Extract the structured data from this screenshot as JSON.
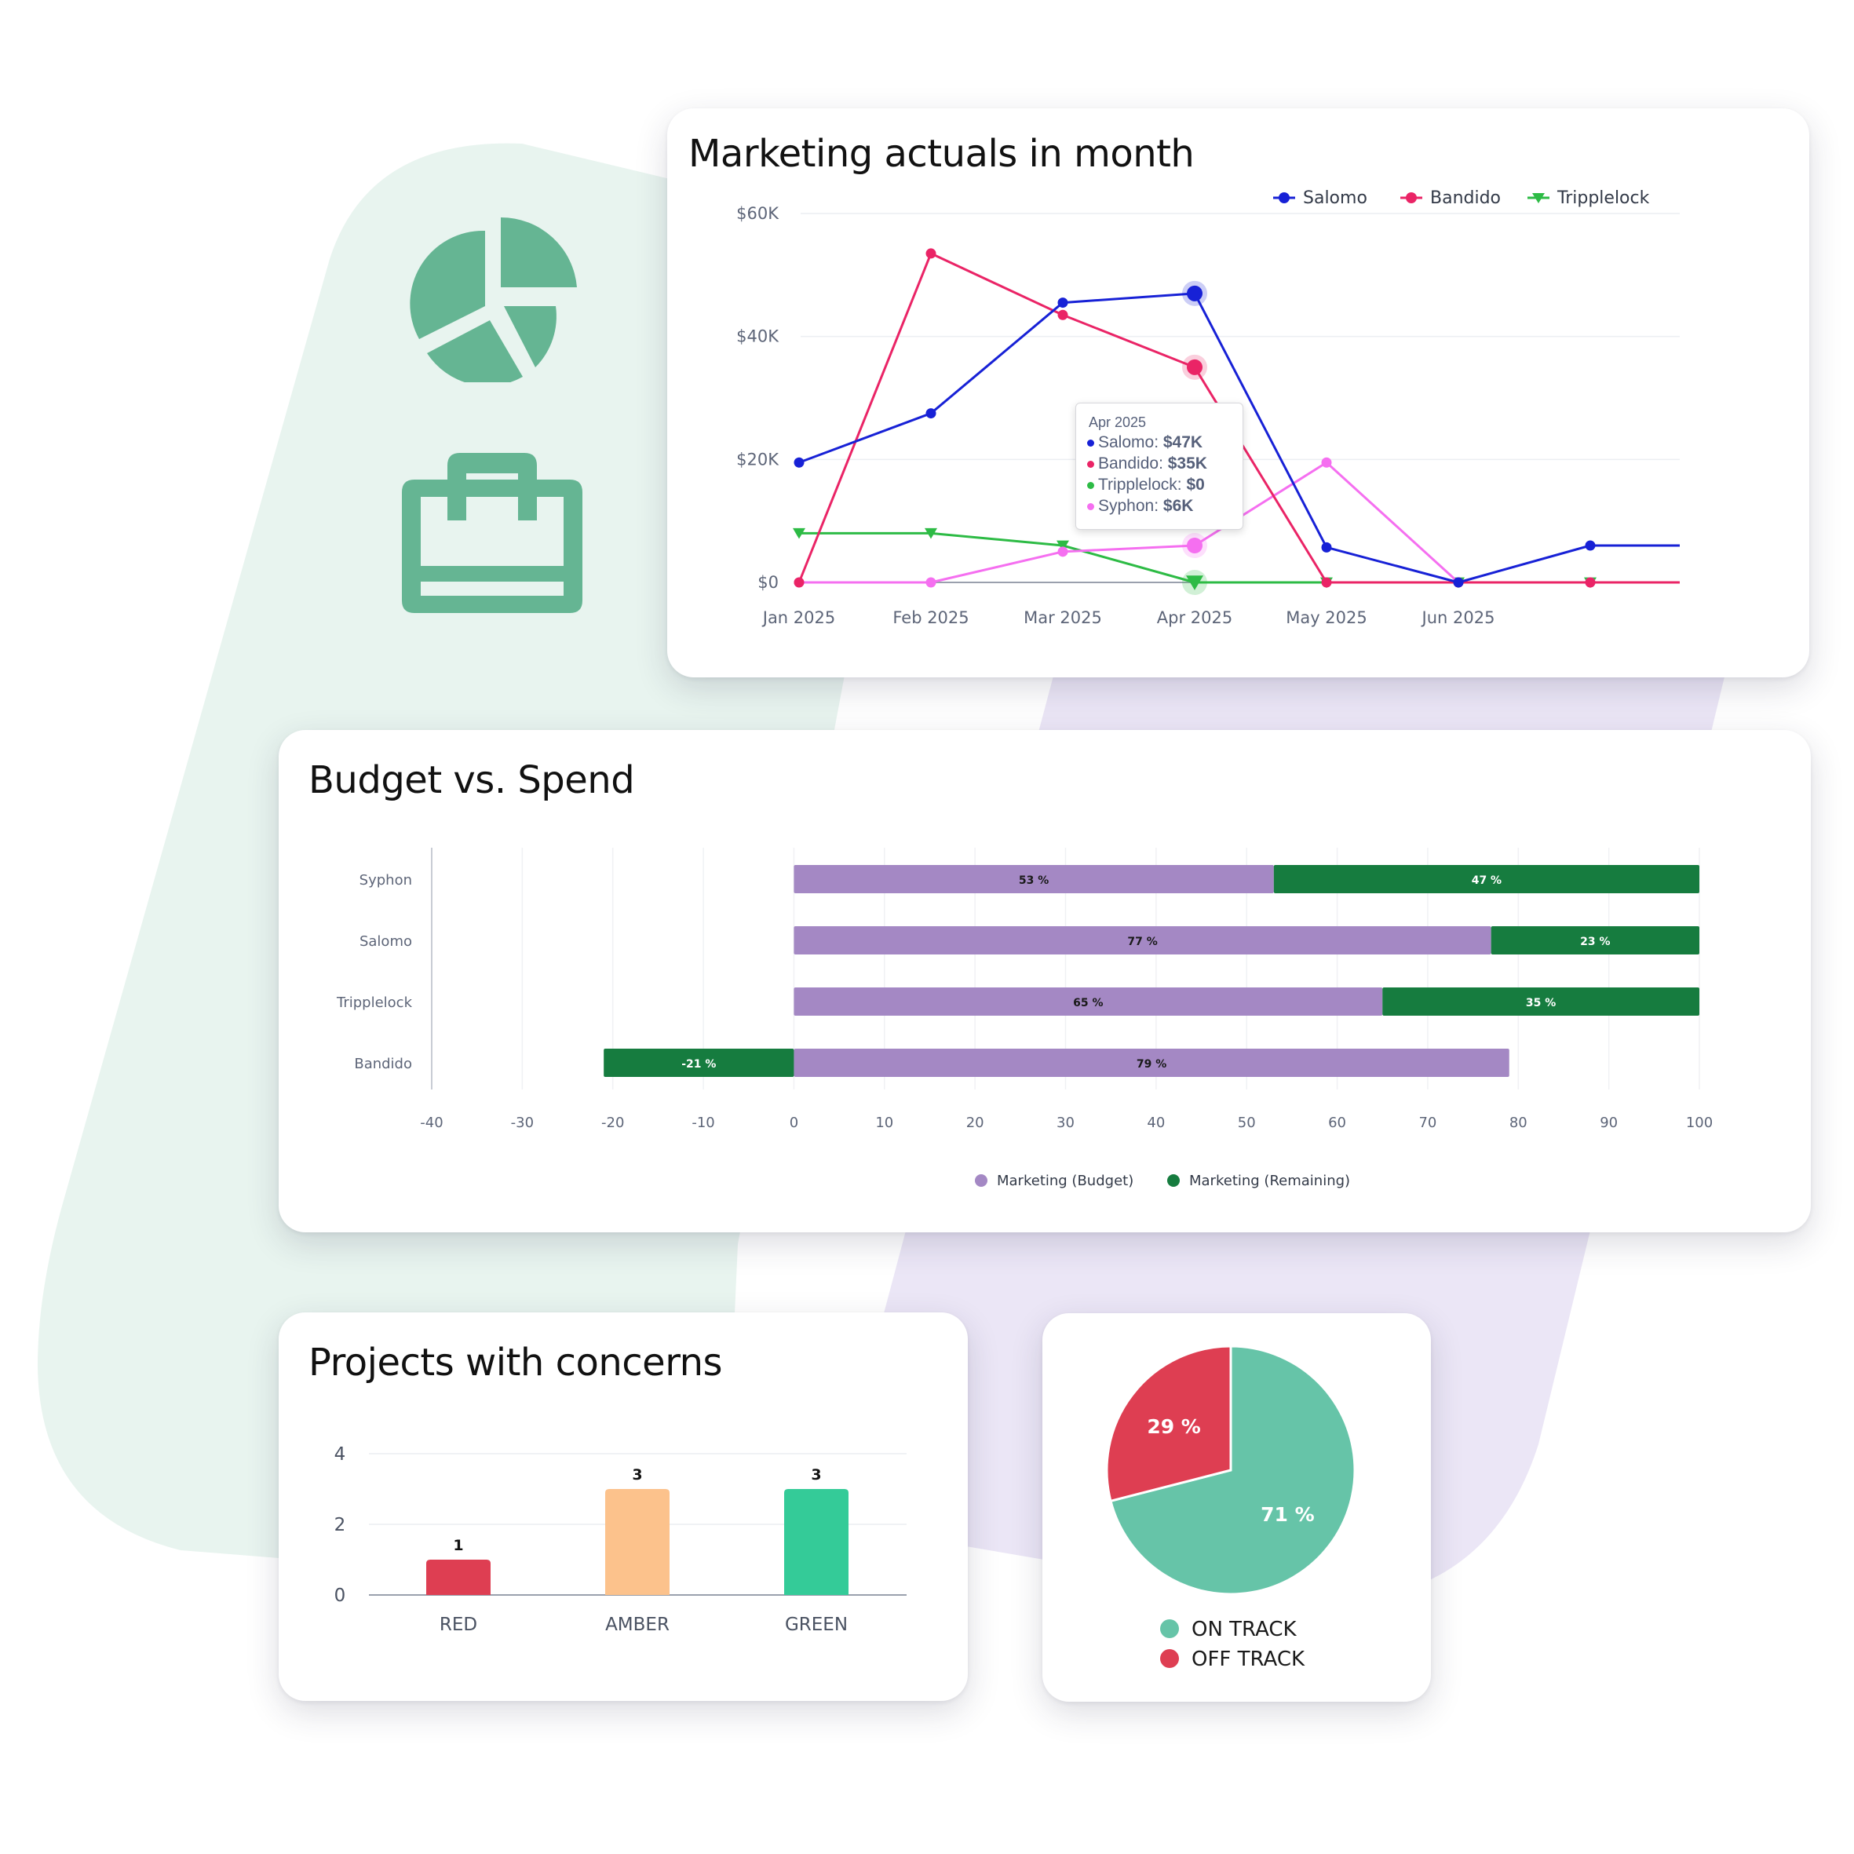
{
  "colors": {
    "mint_bg": "#e8f4ef",
    "lilac_bg": "#ebe6f6",
    "icon_green": "#65b593",
    "salomo": "#1721d6",
    "bandido": "#ea2466",
    "tripplelock": "#2dbb45",
    "syphon": "#f56ff0",
    "budget": "#a488c4",
    "remaining": "#167c3f",
    "red": "#de3e52",
    "amber": "#fcc28c",
    "green": "#34cb98",
    "on_track": "#66c4a8",
    "off_track": "#de3e52"
  },
  "icons": [
    "pie-chart-icon",
    "briefcase-icon"
  ],
  "marketing": {
    "title": "Marketing actuals in month",
    "tooltip": {
      "header": "Apr 2025",
      "rows": [
        {
          "name": "Salomo: ",
          "value": "$47K"
        },
        {
          "name": "Bandido: ",
          "value": "$35K"
        },
        {
          "name": "Tripplelock: ",
          "value": "$0"
        },
        {
          "name": "Syphon: ",
          "value": "$6K"
        }
      ]
    }
  },
  "budget": {
    "title": "Budget vs. Spend"
  },
  "projects": {
    "title": "Projects with concerns"
  },
  "chart_data": [
    {
      "type": "line",
      "title": "Marketing actuals in month",
      "categories": [
        "Jan 2025",
        "Feb 2025",
        "Mar 2025",
        "Apr 2025",
        "May 2025",
        "Jun 2025",
        ""
      ],
      "yticks": [
        "$0",
        "$20K",
        "$40K",
        "$60K"
      ],
      "ylim": [
        0,
        60
      ],
      "unit": "$K",
      "grid": true,
      "legend": "top-right",
      "series": [
        {
          "name": "Salomo",
          "values": [
            19.5,
            27.5,
            45.5,
            47,
            5.7,
            0,
            6
          ]
        },
        {
          "name": "Bandido",
          "values": [
            0,
            53.5,
            43.5,
            35,
            0,
            0,
            0
          ]
        },
        {
          "name": "Tripplelock",
          "values": [
            8,
            8,
            6,
            0,
            0,
            0,
            0
          ]
        },
        {
          "name": "Syphon",
          "values": [
            0,
            0,
            5,
            6,
            19.5,
            0,
            0
          ]
        }
      ]
    },
    {
      "type": "bar",
      "orientation": "horizontal",
      "stacked": true,
      "title": "Budget vs. Spend",
      "categories": [
        "Syphon",
        "Salomo",
        "Tripplelock",
        "Bandido"
      ],
      "xticks": [
        -40,
        -30,
        -20,
        -10,
        0,
        10,
        20,
        30,
        40,
        50,
        60,
        70,
        80,
        90,
        100
      ],
      "xlim": [
        -40,
        100
      ],
      "legend": "bottom",
      "series": [
        {
          "name": "Marketing (Budget)",
          "values": [
            53,
            77,
            65,
            79
          ],
          "labels": [
            "53 %",
            "77 %",
            "65 %",
            "79 %"
          ]
        },
        {
          "name": "Marketing (Remaining)",
          "values": [
            47,
            23,
            35,
            -21
          ],
          "labels": [
            "47 %",
            "23 %",
            "35 %",
            "-21 %"
          ]
        }
      ]
    },
    {
      "type": "bar",
      "title": "Projects with concerns",
      "categories": [
        "RED",
        "AMBER",
        "GREEN"
      ],
      "values": [
        1,
        3,
        3
      ],
      "labels": [
        "1",
        "3",
        "3"
      ],
      "yticks": [
        "0",
        "2",
        "4"
      ],
      "ylim": [
        0,
        4
      ]
    },
    {
      "type": "pie",
      "slices": [
        {
          "name": "ON TRACK",
          "value": 71,
          "label": "71 %"
        },
        {
          "name": "OFF TRACK",
          "value": 29,
          "label": "29 %"
        }
      ],
      "legend": "bottom"
    }
  ]
}
